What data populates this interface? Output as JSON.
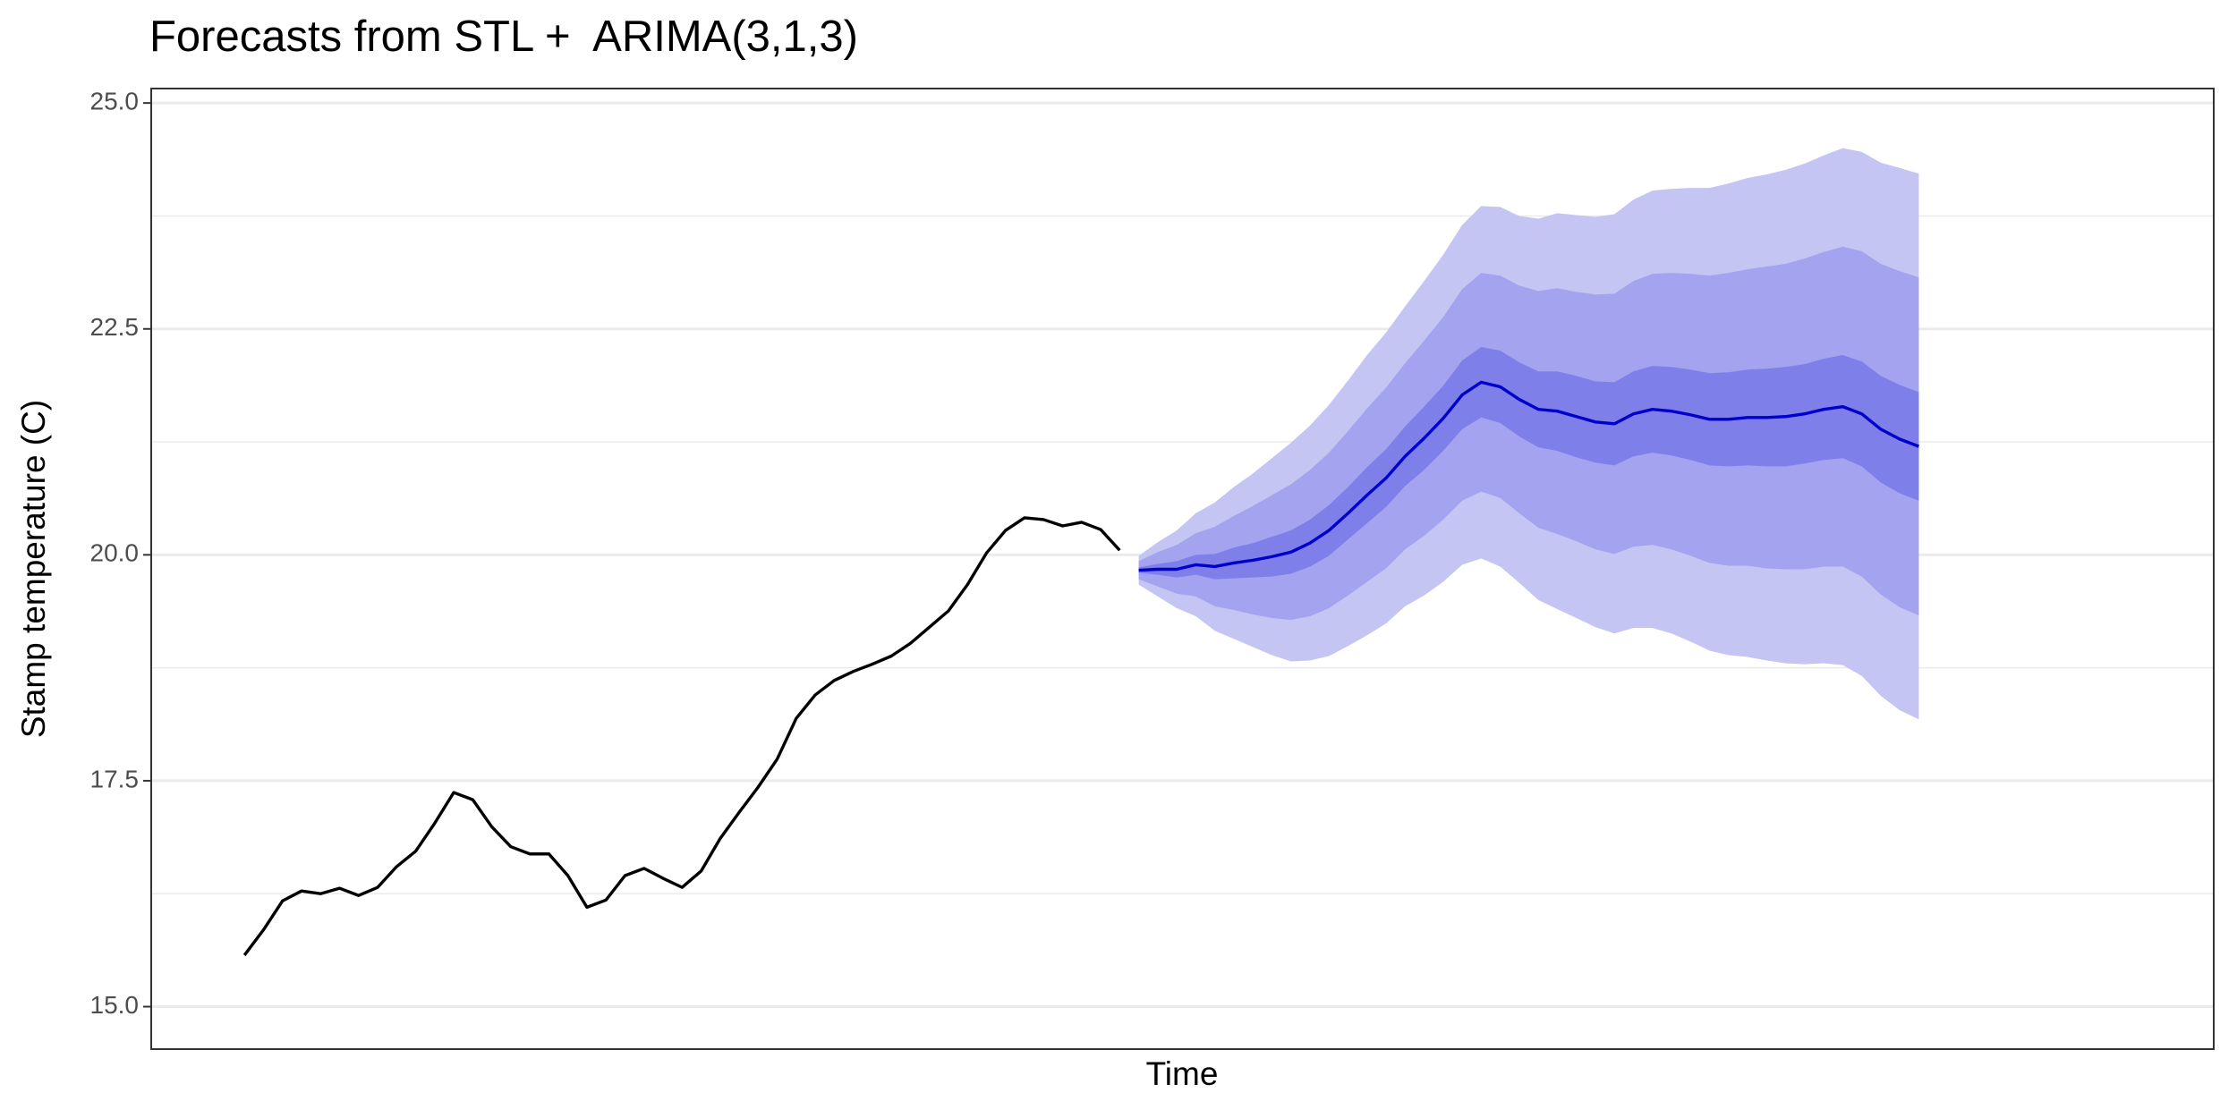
{
  "chart_data": {
    "type": "line",
    "title": "Forecasts from STL +  ARIMA(3,1,3)",
    "xlabel": "Time",
    "ylabel": "Stamp temperature (C)",
    "xlim": [
      -4.9,
      103.5
    ],
    "ylim": [
      14.53,
      25.16
    ],
    "yticks": [
      {
        "value": 15,
        "label": "15.0"
      },
      {
        "value": 17.5,
        "label": "17.5"
      },
      {
        "value": 20,
        "label": "20.0"
      },
      {
        "value": 22.5,
        "label": "22.5"
      },
      {
        "value": 25,
        "label": "25.0"
      }
    ],
    "yminorticks": [
      16.25,
      18.75,
      21.25,
      23.75
    ],
    "grid": true,
    "series": [
      {
        "color": "#000000",
        "x": [
          0,
          1,
          2,
          3,
          4,
          5,
          6,
          7,
          8,
          9,
          10,
          11,
          12,
          13,
          14,
          15,
          16,
          17,
          18,
          19,
          20,
          21,
          22,
          23,
          24,
          25,
          26,
          27,
          28,
          29,
          30,
          31,
          32,
          33,
          34,
          35,
          36,
          37,
          38,
          39,
          40,
          41,
          42,
          43,
          44,
          45,
          46
        ],
        "values": [
          15.57,
          15.85,
          16.17,
          16.28,
          16.25,
          16.31,
          16.23,
          16.32,
          16.55,
          16.72,
          17.03,
          17.37,
          17.29,
          16.99,
          16.77,
          16.69,
          16.69,
          16.45,
          16.1,
          16.18,
          16.45,
          16.53,
          16.42,
          16.32,
          16.5,
          16.86,
          17.15,
          17.43,
          17.74,
          18.19,
          18.45,
          18.61,
          18.71,
          18.79,
          18.88,
          19.02,
          19.2,
          19.38,
          19.67,
          20.02,
          20.27,
          20.41,
          20.39,
          20.32,
          20.36,
          20.28,
          20.05
        ]
      },
      {
        "color": "#0000cc",
        "x": [
          47,
          48,
          49,
          50,
          51,
          52,
          53,
          54,
          55,
          56,
          57,
          58,
          59,
          60,
          61,
          62,
          63,
          64,
          65,
          66,
          67,
          68,
          69,
          70,
          71,
          72,
          73,
          74,
          75,
          76,
          77,
          78,
          79,
          80,
          81,
          82,
          83,
          84,
          85,
          86,
          87,
          88
        ],
        "values": [
          19.83,
          19.84,
          19.84,
          19.89,
          19.87,
          19.91,
          19.94,
          19.98,
          20.03,
          20.13,
          20.27,
          20.46,
          20.66,
          20.85,
          21.09,
          21.29,
          21.51,
          21.77,
          21.91,
          21.86,
          21.72,
          21.61,
          21.59,
          21.53,
          21.47,
          21.45,
          21.56,
          21.61,
          21.59,
          21.55,
          21.5,
          21.5,
          21.52,
          21.52,
          21.53,
          21.56,
          21.61,
          21.64,
          21.56,
          21.39,
          21.28,
          21.2
        ],
        "intervals": [
          {
            "color": "#c5c5f4",
            "upper": [
              19.99,
              20.14,
              20.27,
              20.46,
              20.58,
              20.75,
              20.9,
              21.07,
              21.24,
              21.43,
              21.66,
              21.93,
              22.21,
              22.46,
              22.75,
              23.03,
              23.32,
              23.65,
              23.86,
              23.85,
              23.75,
              23.72,
              23.78,
              23.76,
              23.74,
              23.77,
              23.93,
              24.03,
              24.05,
              24.06,
              24.06,
              24.11,
              24.17,
              24.21,
              24.26,
              24.33,
              24.42,
              24.5,
              24.46,
              24.34,
              24.28,
              24.22
            ],
            "lower": [
              19.67,
              19.54,
              19.41,
              19.32,
              19.16,
              19.07,
              18.98,
              18.89,
              18.82,
              18.83,
              18.88,
              18.99,
              19.11,
              19.24,
              19.43,
              19.55,
              19.7,
              19.89,
              19.96,
              19.87,
              19.69,
              19.5,
              19.4,
              19.3,
              19.2,
              19.13,
              19.19,
              19.19,
              19.13,
              19.04,
              18.94,
              18.89,
              18.87,
              18.83,
              18.8,
              18.79,
              18.8,
              18.78,
              18.66,
              18.44,
              18.28,
              18.18
            ]
          },
          {
            "color": "#a3a3ef",
            "upper": [
              19.93,
              20.03,
              20.11,
              20.24,
              20.31,
              20.43,
              20.54,
              20.66,
              20.78,
              20.94,
              21.13,
              21.37,
              21.62,
              21.85,
              22.12,
              22.37,
              22.63,
              22.94,
              23.12,
              23.09,
              22.98,
              22.92,
              22.95,
              22.91,
              22.88,
              22.89,
              23.03,
              23.11,
              23.12,
              23.11,
              23.09,
              23.12,
              23.16,
              23.19,
              23.22,
              23.28,
              23.35,
              23.41,
              23.36,
              23.22,
              23.14,
              23.07
            ],
            "lower": [
              19.73,
              19.65,
              19.57,
              19.54,
              19.43,
              19.39,
              19.34,
              19.3,
              19.28,
              19.32,
              19.41,
              19.55,
              19.7,
              19.85,
              20.06,
              20.21,
              20.39,
              20.6,
              20.7,
              20.63,
              20.46,
              20.3,
              20.23,
              20.15,
              20.06,
              20.01,
              20.09,
              20.11,
              20.06,
              19.99,
              19.91,
              19.88,
              19.88,
              19.85,
              19.84,
              19.84,
              19.87,
              19.87,
              19.76,
              19.56,
              19.42,
              19.33
            ]
          },
          {
            "color": "#7f7fea",
            "upper": [
              19.86,
              19.9,
              19.93,
              20.0,
              20.01,
              20.08,
              20.13,
              20.2,
              20.27,
              20.39,
              20.55,
              20.75,
              20.97,
              21.17,
              21.42,
              21.64,
              21.87,
              22.15,
              22.3,
              22.26,
              22.13,
              22.03,
              22.03,
              21.98,
              21.92,
              21.91,
              22.03,
              22.09,
              22.08,
              22.05,
              22.01,
              22.02,
              22.05,
              22.06,
              22.08,
              22.11,
              22.17,
              22.21,
              22.14,
              21.98,
              21.88,
              21.8
            ],
            "lower": [
              19.8,
              19.78,
              19.75,
              19.78,
              19.73,
              19.74,
              19.75,
              19.76,
              19.79,
              19.87,
              19.99,
              20.17,
              20.35,
              20.53,
              20.76,
              20.94,
              21.15,
              21.39,
              21.52,
              21.46,
              21.31,
              21.19,
              21.15,
              21.08,
              21.02,
              20.99,
              21.09,
              21.13,
              21.1,
              21.05,
              20.99,
              20.98,
              20.99,
              20.98,
              20.98,
              21.01,
              21.05,
              21.07,
              20.98,
              20.8,
              20.68,
              20.6
            ]
          }
        ]
      }
    ]
  }
}
